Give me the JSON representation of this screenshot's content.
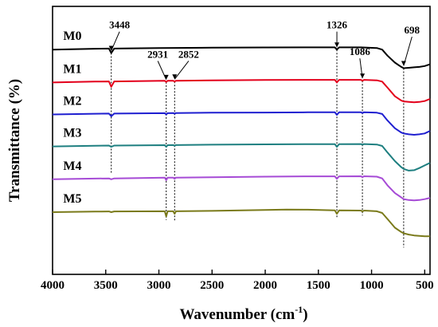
{
  "chart_data": {
    "type": "line",
    "title": "",
    "xlabel": "Wavenumber (cm",
    "xlabel_sup": "-1",
    "xlabel_close": ")",
    "ylabel": "Transmittance (%)",
    "xlim": [
      4000,
      450
    ],
    "x_reversed": true,
    "x_ticks": [
      4000,
      3500,
      3000,
      2500,
      2000,
      1500,
      1000,
      500
    ],
    "y_ticks_shown": false,
    "grid": false,
    "legend": "inline-left",
    "series": [
      {
        "name": "M0",
        "color": "#000000",
        "points": [
          [
            4000,
            1.0
          ],
          [
            3600,
            1.01
          ],
          [
            3470,
            1.012
          ],
          [
            3448,
            0.96
          ],
          [
            3420,
            1.012
          ],
          [
            3000,
            1.018
          ],
          [
            2500,
            1.022
          ],
          [
            2000,
            1.025
          ],
          [
            1600,
            1.026
          ],
          [
            1345,
            1.026
          ],
          [
            1326,
            1.0
          ],
          [
            1305,
            1.026
          ],
          [
            1100,
            1.026
          ],
          [
            950,
            1.018
          ],
          [
            900,
            1.0
          ],
          [
            850,
            0.93
          ],
          [
            780,
            0.85
          ],
          [
            720,
            0.8
          ],
          [
            698,
            0.785
          ],
          [
            650,
            0.79
          ],
          [
            600,
            0.795
          ],
          [
            550,
            0.8
          ],
          [
            500,
            0.81
          ],
          [
            450,
            0.83
          ]
        ],
        "label_x": 3900
      },
      {
        "name": "M1",
        "color": "#e3001b",
        "points": [
          [
            4000,
            0.62
          ],
          [
            3600,
            0.63
          ],
          [
            3470,
            0.632
          ],
          [
            3448,
            0.57
          ],
          [
            3420,
            0.632
          ],
          [
            2945,
            0.64
          ],
          [
            2931,
            0.625
          ],
          [
            2918,
            0.64
          ],
          [
            2865,
            0.64
          ],
          [
            2852,
            0.63
          ],
          [
            2840,
            0.64
          ],
          [
            2500,
            0.645
          ],
          [
            2000,
            0.648
          ],
          [
            1600,
            0.65
          ],
          [
            1345,
            0.65
          ],
          [
            1326,
            0.62
          ],
          [
            1305,
            0.65
          ],
          [
            1100,
            0.65
          ],
          [
            1086,
            0.64
          ],
          [
            1070,
            0.65
          ],
          [
            950,
            0.645
          ],
          [
            900,
            0.63
          ],
          [
            850,
            0.56
          ],
          [
            780,
            0.46
          ],
          [
            720,
            0.41
          ],
          [
            698,
            0.4
          ],
          [
            650,
            0.395
          ],
          [
            600,
            0.39
          ],
          [
            550,
            0.395
          ],
          [
            500,
            0.405
          ],
          [
            450,
            0.43
          ]
        ],
        "label_x": 3900
      },
      {
        "name": "M2",
        "color": "#1f1fd0",
        "points": [
          [
            4000,
            0.25
          ],
          [
            3600,
            0.258
          ],
          [
            3470,
            0.26
          ],
          [
            3448,
            0.23
          ],
          [
            3420,
            0.26
          ],
          [
            2945,
            0.265
          ],
          [
            2931,
            0.25
          ],
          [
            2918,
            0.265
          ],
          [
            2865,
            0.266
          ],
          [
            2852,
            0.258
          ],
          [
            2840,
            0.266
          ],
          [
            2500,
            0.27
          ],
          [
            2000,
            0.272
          ],
          [
            1600,
            0.275
          ],
          [
            1345,
            0.275
          ],
          [
            1326,
            0.245
          ],
          [
            1305,
            0.275
          ],
          [
            1100,
            0.276
          ],
          [
            1086,
            0.266
          ],
          [
            1070,
            0.276
          ],
          [
            950,
            0.27
          ],
          [
            900,
            0.255
          ],
          [
            850,
            0.18
          ],
          [
            780,
            0.09
          ],
          [
            720,
            0.04
          ],
          [
            698,
            0.03
          ],
          [
            650,
            0.02
          ],
          [
            600,
            0.015
          ],
          [
            550,
            0.02
          ],
          [
            500,
            0.03
          ],
          [
            450,
            0.06
          ]
        ],
        "label_x": 3900
      },
      {
        "name": "M3",
        "color": "#1e7f80",
        "points": [
          [
            4000,
            -0.12
          ],
          [
            3600,
            -0.112
          ],
          [
            3470,
            -0.11
          ],
          [
            3448,
            -0.125
          ],
          [
            3420,
            -0.11
          ],
          [
            2945,
            -0.105
          ],
          [
            2931,
            -0.125
          ],
          [
            2918,
            -0.105
          ],
          [
            2865,
            -0.104
          ],
          [
            2852,
            -0.112
          ],
          [
            2840,
            -0.104
          ],
          [
            2500,
            -0.1
          ],
          [
            2000,
            -0.096
          ],
          [
            1600,
            -0.093
          ],
          [
            1345,
            -0.093
          ],
          [
            1326,
            -0.125
          ],
          [
            1305,
            -0.093
          ],
          [
            1100,
            -0.092
          ],
          [
            1086,
            -0.1
          ],
          [
            1070,
            -0.092
          ],
          [
            950,
            -0.098
          ],
          [
            900,
            -0.115
          ],
          [
            850,
            -0.19
          ],
          [
            780,
            -0.29
          ],
          [
            720,
            -0.36
          ],
          [
            698,
            -0.38
          ],
          [
            650,
            -0.4
          ],
          [
            600,
            -0.395
          ],
          [
            550,
            -0.37
          ],
          [
            500,
            -0.34
          ],
          [
            450,
            -0.31
          ]
        ],
        "label_x": 3900
      },
      {
        "name": "M4",
        "color": "#a64bd6",
        "points": [
          [
            4000,
            -0.5
          ],
          [
            3600,
            -0.492
          ],
          [
            3470,
            -0.49
          ],
          [
            3448,
            -0.5
          ],
          [
            3420,
            -0.49
          ],
          [
            2945,
            -0.482
          ],
          [
            2931,
            -0.51
          ],
          [
            2918,
            -0.482
          ],
          [
            2865,
            -0.481
          ],
          [
            2852,
            -0.495
          ],
          [
            2840,
            -0.481
          ],
          [
            2500,
            -0.476
          ],
          [
            2000,
            -0.47
          ],
          [
            1600,
            -0.466
          ],
          [
            1345,
            -0.466
          ],
          [
            1326,
            -0.495
          ],
          [
            1305,
            -0.466
          ],
          [
            1100,
            -0.465
          ],
          [
            1086,
            -0.475
          ],
          [
            1070,
            -0.465
          ],
          [
            950,
            -0.47
          ],
          [
            900,
            -0.49
          ],
          [
            850,
            -0.57
          ],
          [
            780,
            -0.66
          ],
          [
            720,
            -0.71
          ],
          [
            698,
            -0.73
          ],
          [
            650,
            -0.74
          ],
          [
            600,
            -0.745
          ],
          [
            550,
            -0.74
          ],
          [
            500,
            -0.73
          ],
          [
            450,
            -0.715
          ]
        ],
        "label_x": 3900
      },
      {
        "name": "M5",
        "color": "#7a7a1a",
        "points": [
          [
            4000,
            -0.88
          ],
          [
            3600,
            -0.874
          ],
          [
            3470,
            -0.872
          ],
          [
            3448,
            -0.88
          ],
          [
            3420,
            -0.872
          ],
          [
            2945,
            -0.87
          ],
          [
            2931,
            -0.93
          ],
          [
            2918,
            -0.87
          ],
          [
            2865,
            -0.87
          ],
          [
            2852,
            -0.9
          ],
          [
            2840,
            -0.87
          ],
          [
            2500,
            -0.866
          ],
          [
            2000,
            -0.855
          ],
          [
            1800,
            -0.85
          ],
          [
            1600,
            -0.852
          ],
          [
            1345,
            -0.86
          ],
          [
            1326,
            -0.9
          ],
          [
            1305,
            -0.86
          ],
          [
            1100,
            -0.862
          ],
          [
            1086,
            -0.872
          ],
          [
            1070,
            -0.862
          ],
          [
            950,
            -0.87
          ],
          [
            900,
            -0.89
          ],
          [
            850,
            -0.96
          ],
          [
            780,
            -1.06
          ],
          [
            720,
            -1.11
          ],
          [
            698,
            -1.125
          ],
          [
            650,
            -1.14
          ],
          [
            600,
            -1.15
          ],
          [
            550,
            -1.155
          ],
          [
            500,
            -1.16
          ],
          [
            450,
            -1.16
          ]
        ],
        "label_x": 3900
      }
    ],
    "annotations": [
      {
        "label": "3448",
        "x": 3448,
        "y_top": 0.96,
        "y_bottom": -0.44,
        "label_x": 3370,
        "label_y": 1.245
      },
      {
        "label": "2931",
        "x": 2931,
        "y_top": 0.625,
        "y_bottom": -0.97,
        "label_x": 3010,
        "label_y": 0.905
      },
      {
        "label": "2852",
        "x": 2852,
        "y_top": 0.63,
        "y_bottom": -0.98,
        "label_x": 2720,
        "label_y": 0.905
      },
      {
        "label": "1326",
        "x": 1326,
        "y_top": 1.0,
        "y_bottom": -0.94,
        "label_x": 1326,
        "label_y": 1.245
      },
      {
        "label": "1086",
        "x": 1086,
        "y_top": 0.64,
        "y_bottom": -0.92,
        "label_x": 1110,
        "label_y": 0.935
      },
      {
        "label": "698",
        "x": 698,
        "y_top": 0.785,
        "y_bottom": -1.29,
        "label_x": 620,
        "label_y": 1.185
      }
    ]
  }
}
